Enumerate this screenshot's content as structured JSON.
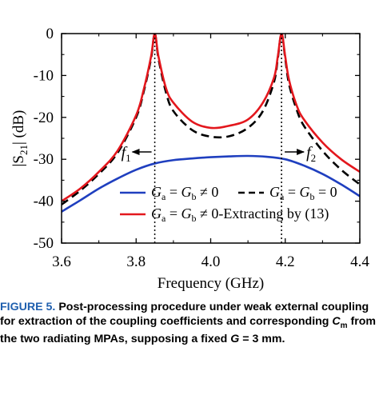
{
  "chart_data": {
    "type": "line",
    "xlabel": "Frequency (GHz)",
    "ylabel_main": "|S",
    "ylabel_sub": "21",
    "ylabel_unit": "| (dB)",
    "xlim": [
      3.6,
      4.4
    ],
    "ylim": [
      -50,
      0
    ],
    "xticks": [
      "3.6",
      "3.8",
      "4.0",
      "4.2",
      "4.4"
    ],
    "yticks": [
      "0",
      "-10",
      "-20",
      "-30",
      "-40",
      "-50"
    ],
    "grid": false,
    "legend_placement": "bottom",
    "annotations": {
      "f1": {
        "letter": "f",
        "sub": "1",
        "x": 3.85
      },
      "f2": {
        "letter": "f",
        "sub": "2",
        "x": 4.19
      }
    },
    "series": [
      {
        "key": "blue",
        "legend": {
          "g": "G",
          "a": "a",
          "eq": " = ",
          "g2": "G",
          "b": "b",
          "rest": " ≠ 0"
        },
        "color": "#1f3fbf",
        "dash": "solid",
        "x": [
          3.6,
          3.65,
          3.7,
          3.75,
          3.8,
          3.85,
          3.9,
          3.95,
          4.0,
          4.05,
          4.1,
          4.15,
          4.2,
          4.25,
          4.3,
          4.35,
          4.4
        ],
        "y": [
          -42.5,
          -39.8,
          -37.0,
          -34.6,
          -32.5,
          -31.0,
          -30.2,
          -29.8,
          -29.5,
          -29.3,
          -29.2,
          -29.4,
          -30.0,
          -31.5,
          -33.5,
          -36.0,
          -38.8
        ]
      },
      {
        "key": "black",
        "legend": {
          "g": "G",
          "a": "a",
          "eq": " = ",
          "g2": "G",
          "b": "b",
          "rest": " = 0"
        },
        "color": "#000000",
        "dash": "dashed",
        "x": [
          3.6,
          3.65,
          3.7,
          3.75,
          3.8,
          3.82,
          3.84,
          3.85,
          3.86,
          3.88,
          3.9,
          3.95,
          4.0,
          4.05,
          4.1,
          4.14,
          4.17,
          4.18,
          4.19,
          4.2,
          4.21,
          4.23,
          4.25,
          4.3,
          4.35,
          4.4
        ],
        "y": [
          -40.8,
          -37.5,
          -33.5,
          -28.5,
          -20.0,
          -14.0,
          -6.0,
          0.0,
          -6.0,
          -14.0,
          -18.5,
          -23.0,
          -24.6,
          -24.5,
          -22.5,
          -18.5,
          -11.5,
          -6.0,
          0.0,
          -6.0,
          -12.0,
          -18.0,
          -22.0,
          -28.0,
          -32.5,
          -36.0
        ]
      },
      {
        "key": "red",
        "legend": {
          "g": "G",
          "a": "a",
          "eq": " = ",
          "g2": "G",
          "b": "b",
          "rest": " ≠ 0-Extracting by (13)"
        },
        "color": "#e3171d",
        "dash": "solid",
        "x": [
          3.6,
          3.65,
          3.7,
          3.75,
          3.8,
          3.82,
          3.84,
          3.85,
          3.86,
          3.88,
          3.9,
          3.95,
          4.0,
          4.05,
          4.1,
          4.14,
          4.17,
          4.18,
          4.19,
          4.2,
          4.21,
          4.23,
          4.25,
          4.3,
          4.35,
          4.4
        ],
        "y": [
          -40.0,
          -37.0,
          -33.0,
          -28.0,
          -19.5,
          -13.5,
          -5.5,
          0.0,
          -5.5,
          -13.0,
          -16.5,
          -21.0,
          -22.5,
          -22.0,
          -20.5,
          -16.5,
          -10.5,
          -5.5,
          0.0,
          -5.5,
          -11.0,
          -17.0,
          -20.5,
          -26.0,
          -30.0,
          -33.0
        ]
      }
    ]
  },
  "caption": {
    "label": "FIGURE 5.",
    "part1": "Post-processing procedure under weak external coupling for extraction of the coupling coefficients and corresponding ",
    "cm_c": "C",
    "cm_sub": "m",
    "part2": " from the two radiating MPAs, supposing a fixed ",
    "g_letter": "G",
    "part3": " = 3 mm."
  }
}
